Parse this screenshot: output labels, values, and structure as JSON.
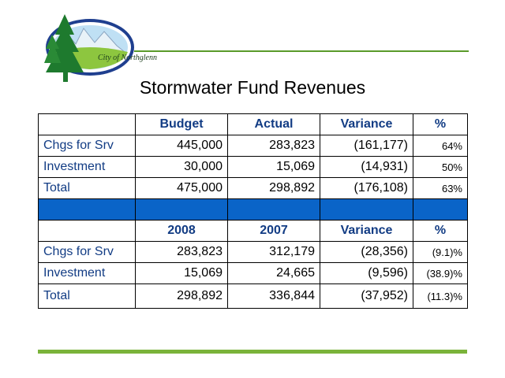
{
  "logo": {
    "text": "City of Northglenn",
    "accent_color": "#2f7f2f"
  },
  "title": "Stormwater Fund Revenues",
  "table1": {
    "headers": [
      "",
      "Budget",
      "Actual",
      "Variance",
      "%"
    ],
    "rows": [
      [
        "Chgs for Srv",
        "445,000",
        "283,823",
        "(161,177)",
        "64%"
      ],
      [
        "Investment",
        "30,000",
        "15,069",
        "(14,931)",
        "50%"
      ],
      [
        "Total",
        "475,000",
        "298,892",
        "(176,108)",
        "63%"
      ]
    ]
  },
  "separator_color": "#0a64c8",
  "table2": {
    "headers": [
      "",
      "2008",
      "2007",
      "Variance",
      "%"
    ],
    "rows": [
      [
        "Chgs for Srv",
        "283,823",
        "312,179",
        "(28,356)",
        "(9.1)%"
      ],
      [
        "Investment",
        "15,069",
        "24,665",
        "(9,596)",
        "(38.9)%"
      ],
      [
        "Total",
        "298,892",
        "336,844",
        "(37,952)",
        "(11.3)%"
      ]
    ]
  }
}
